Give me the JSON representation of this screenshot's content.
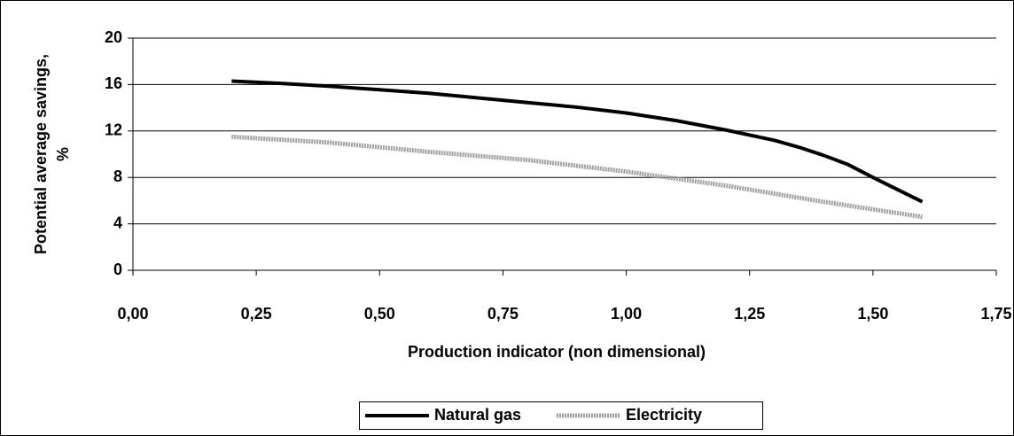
{
  "chart_data": {
    "type": "line",
    "xlabel": "Production indicator (non dimensional)",
    "ylabel": [
      "Potential average savings,",
      "%"
    ],
    "xlim": [
      0,
      1.75
    ],
    "xticks": [
      {
        "value": 0,
        "label": "0,00"
      },
      {
        "value": 0.25,
        "label": "0,25"
      },
      {
        "value": 0.5,
        "label": "0,50"
      },
      {
        "value": 0.75,
        "label": "0,75"
      },
      {
        "value": 1,
        "label": "1,00"
      },
      {
        "value": 1.25,
        "label": "1,25"
      },
      {
        "value": 1.5,
        "label": "1,50"
      },
      {
        "value": 1.75,
        "label": "1,75"
      }
    ],
    "ylim": [
      0,
      20
    ],
    "yticks": [
      0,
      4,
      8,
      12,
      16,
      20
    ],
    "grid": true,
    "legend": "bottom",
    "series": [
      {
        "name": "Natural gas",
        "color": "#000000",
        "x": [
          0.2,
          0.3,
          0.4,
          0.5,
          0.6,
          0.7,
          0.8,
          0.9,
          1.0,
          1.1,
          1.2,
          1.3,
          1.35,
          1.4,
          1.45,
          1.5,
          1.6
        ],
        "values": [
          16.3,
          16.1,
          15.85,
          15.55,
          15.25,
          14.85,
          14.45,
          14.05,
          13.55,
          12.9,
          12.1,
          11.2,
          10.6,
          9.9,
          9.1,
          8.0,
          5.9
        ]
      },
      {
        "name": "Electricity",
        "color": "#a0a0a0",
        "x": [
          0.2,
          0.4,
          0.6,
          0.8,
          1.0,
          1.2,
          1.4,
          1.6
        ],
        "values": [
          11.5,
          11.0,
          10.2,
          9.5,
          8.5,
          7.3,
          5.9,
          4.6
        ]
      }
    ]
  }
}
